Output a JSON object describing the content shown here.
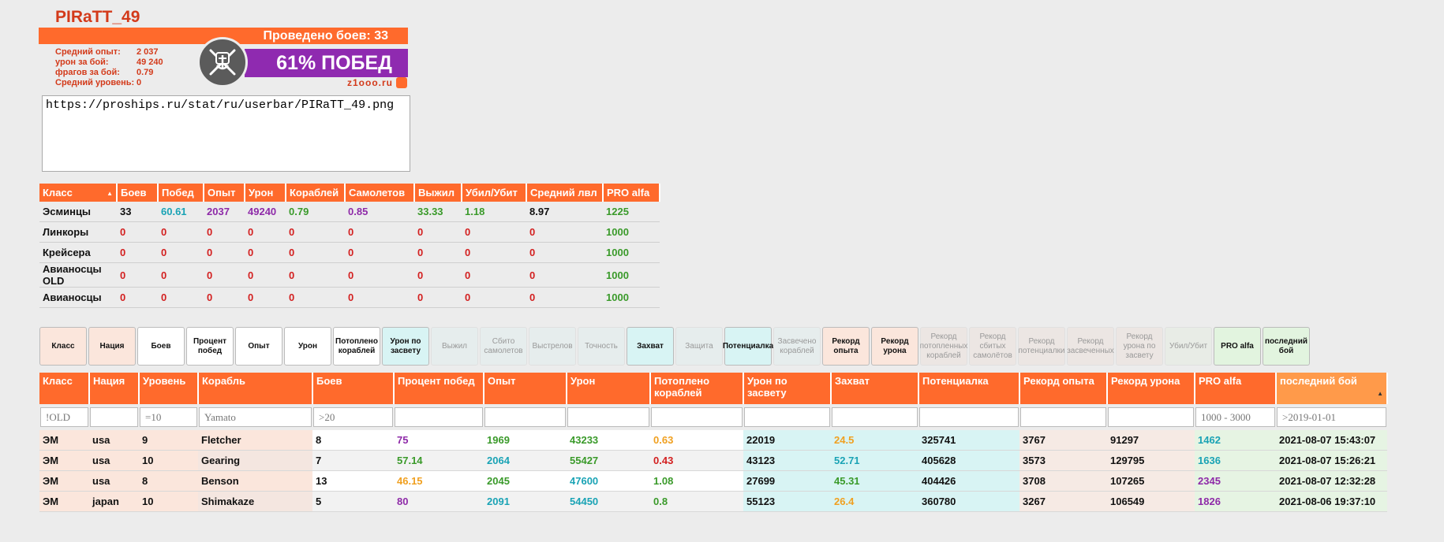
{
  "colors": {
    "orange": "#ff6a2c",
    "purple": "#8f2ab0",
    "red": "#d33a1a",
    "teal": "#1aa3b5",
    "green": "#3a9a2a"
  },
  "userbar": {
    "player_name": "PIRaTT_49",
    "battles_label": "Проведено боев: 33",
    "win_label": "61% ПОБЕД",
    "site": "z1ooo.ru",
    "emblem_icon": "pirate-anchor-icon",
    "stats": [
      {
        "label": "Средний опыт:",
        "value": "2 037"
      },
      {
        "label": "урон за бой:",
        "value": "49 240"
      },
      {
        "label": "фрагов за бой:",
        "value": "0.79"
      },
      {
        "label": "Средний уровень:",
        "value": "0"
      }
    ],
    "url": "https://proships.ru/stat/ru/userbar/PIRaTT_49.png"
  },
  "class_table": {
    "headers": [
      "Класс",
      "Боев",
      "Побед",
      "Опыт",
      "Урон",
      "Кораблей",
      "Самолетов",
      "Выжил",
      "Убил/Убит",
      "Средний лвл",
      "PRO alfa"
    ],
    "rows": [
      [
        "Эсминцы",
        "33",
        "60.61",
        "2037",
        "49240",
        "0.79",
        "0.85",
        "33.33",
        "1.18",
        "8.97",
        "1225"
      ],
      [
        "Линкоры",
        "0",
        "0",
        "0",
        "0",
        "0",
        "0",
        "0",
        "0",
        "0",
        "1000"
      ],
      [
        "Крейсера",
        "0",
        "0",
        "0",
        "0",
        "0",
        "0",
        "0",
        "0",
        "0",
        "1000"
      ],
      [
        "Авианосцы OLD",
        "0",
        "0",
        "0",
        "0",
        "0",
        "0",
        "0",
        "0",
        "0",
        "1000"
      ],
      [
        "Авианосцы",
        "0",
        "0",
        "0",
        "0",
        "0",
        "0",
        "0",
        "0",
        "0",
        "1000"
      ]
    ]
  },
  "filter_buttons": [
    {
      "label": "Класс",
      "on": true,
      "bg": "#fbe6dc"
    },
    {
      "label": "Нация",
      "on": true,
      "bg": "#fbe6dc"
    },
    {
      "label": "Боев",
      "on": true,
      "bg": "#ffffff"
    },
    {
      "label": "Процент побед",
      "on": true,
      "bg": "#ffffff"
    },
    {
      "label": "Опыт",
      "on": true,
      "bg": "#ffffff"
    },
    {
      "label": "Урон",
      "on": true,
      "bg": "#ffffff"
    },
    {
      "label": "Потоплено кораблей",
      "on": true,
      "bg": "#ffffff"
    },
    {
      "label": "Урон по засвету",
      "on": true,
      "bg": "#d8f4f4"
    },
    {
      "label": "Выжил",
      "on": false,
      "bg": "#e6eded"
    },
    {
      "label": "Сбито самолетов",
      "on": false,
      "bg": "#e6eded"
    },
    {
      "label": "Выстрелов",
      "on": false,
      "bg": "#e6eded"
    },
    {
      "label": "Точность",
      "on": false,
      "bg": "#e6eded"
    },
    {
      "label": "Захват",
      "on": true,
      "bg": "#d8f4f4"
    },
    {
      "label": "Защита",
      "on": false,
      "bg": "#e6eded"
    },
    {
      "label": "Потенциалка",
      "on": true,
      "bg": "#d8f4f4"
    },
    {
      "label": "Засвечено кораблей",
      "on": false,
      "bg": "#e6eded"
    },
    {
      "label": "Рекорд опыта",
      "on": true,
      "bg": "#fbe6dc"
    },
    {
      "label": "Рекорд урона",
      "on": true,
      "bg": "#fbe6dc"
    },
    {
      "label": "Рекорд потопленных кораблей",
      "on": false,
      "bg": "#ece6e3"
    },
    {
      "label": "Рекорд сбитых самолётов",
      "on": false,
      "bg": "#ece6e3"
    },
    {
      "label": "Рекорд потенциалки",
      "on": false,
      "bg": "#ece6e3"
    },
    {
      "label": "Рекорд засвеченных",
      "on": false,
      "bg": "#ece6e3"
    },
    {
      "label": "Рекорд урона по засвету",
      "on": false,
      "bg": "#ece6e3"
    },
    {
      "label": "Убил/Убит",
      "on": false,
      "bg": "#e8ece6"
    },
    {
      "label": "PRO alfa",
      "on": true,
      "bg": "#e2f4df"
    },
    {
      "label": "последний бой",
      "on": true,
      "bg": "#e2f4df"
    }
  ],
  "ships_table": {
    "headers": [
      "Класс",
      "Нация",
      "Уровень",
      "Корабль",
      "Боев",
      "Процент побед",
      "Опыт",
      "Урон",
      "Потоплено кораблей",
      "Урон по засвету",
      "Захват",
      "Потенциалка",
      "Рекорд опыта",
      "Рекорд урона",
      "PRO alfa",
      "последний бой"
    ],
    "filters": [
      "!OLD",
      "",
      "=10",
      "Yamato",
      ">20",
      "",
      "",
      "",
      "",
      "",
      "",
      "",
      "",
      "",
      "1000 - 3000",
      ">2019-01-01"
    ],
    "rows": [
      [
        "ЭМ",
        "usa",
        "9",
        "Fletcher",
        "8",
        "75",
        "1969",
        "43233",
        "0.63",
        "22019",
        "24.5",
        "325741",
        "3767",
        "91297",
        "1462",
        "2021-08-07 15:43:07"
      ],
      [
        "ЭМ",
        "usa",
        "10",
        "Gearing",
        "7",
        "57.14",
        "2064",
        "55427",
        "0.43",
        "43123",
        "52.71",
        "405628",
        "3573",
        "129795",
        "1636",
        "2021-08-07 15:26:21"
      ],
      [
        "ЭМ",
        "usa",
        "8",
        "Benson",
        "13",
        "46.15",
        "2045",
        "47600",
        "1.08",
        "27699",
        "45.31",
        "404426",
        "3708",
        "107265",
        "2345",
        "2021-08-07 12:32:28"
      ],
      [
        "ЭМ",
        "japan",
        "10",
        "Shimakaze",
        "5",
        "80",
        "2091",
        "54450",
        "0.8",
        "55123",
        "26.4",
        "360780",
        "3267",
        "106549",
        "1826",
        "2021-08-06 19:37:10"
      ]
    ]
  }
}
